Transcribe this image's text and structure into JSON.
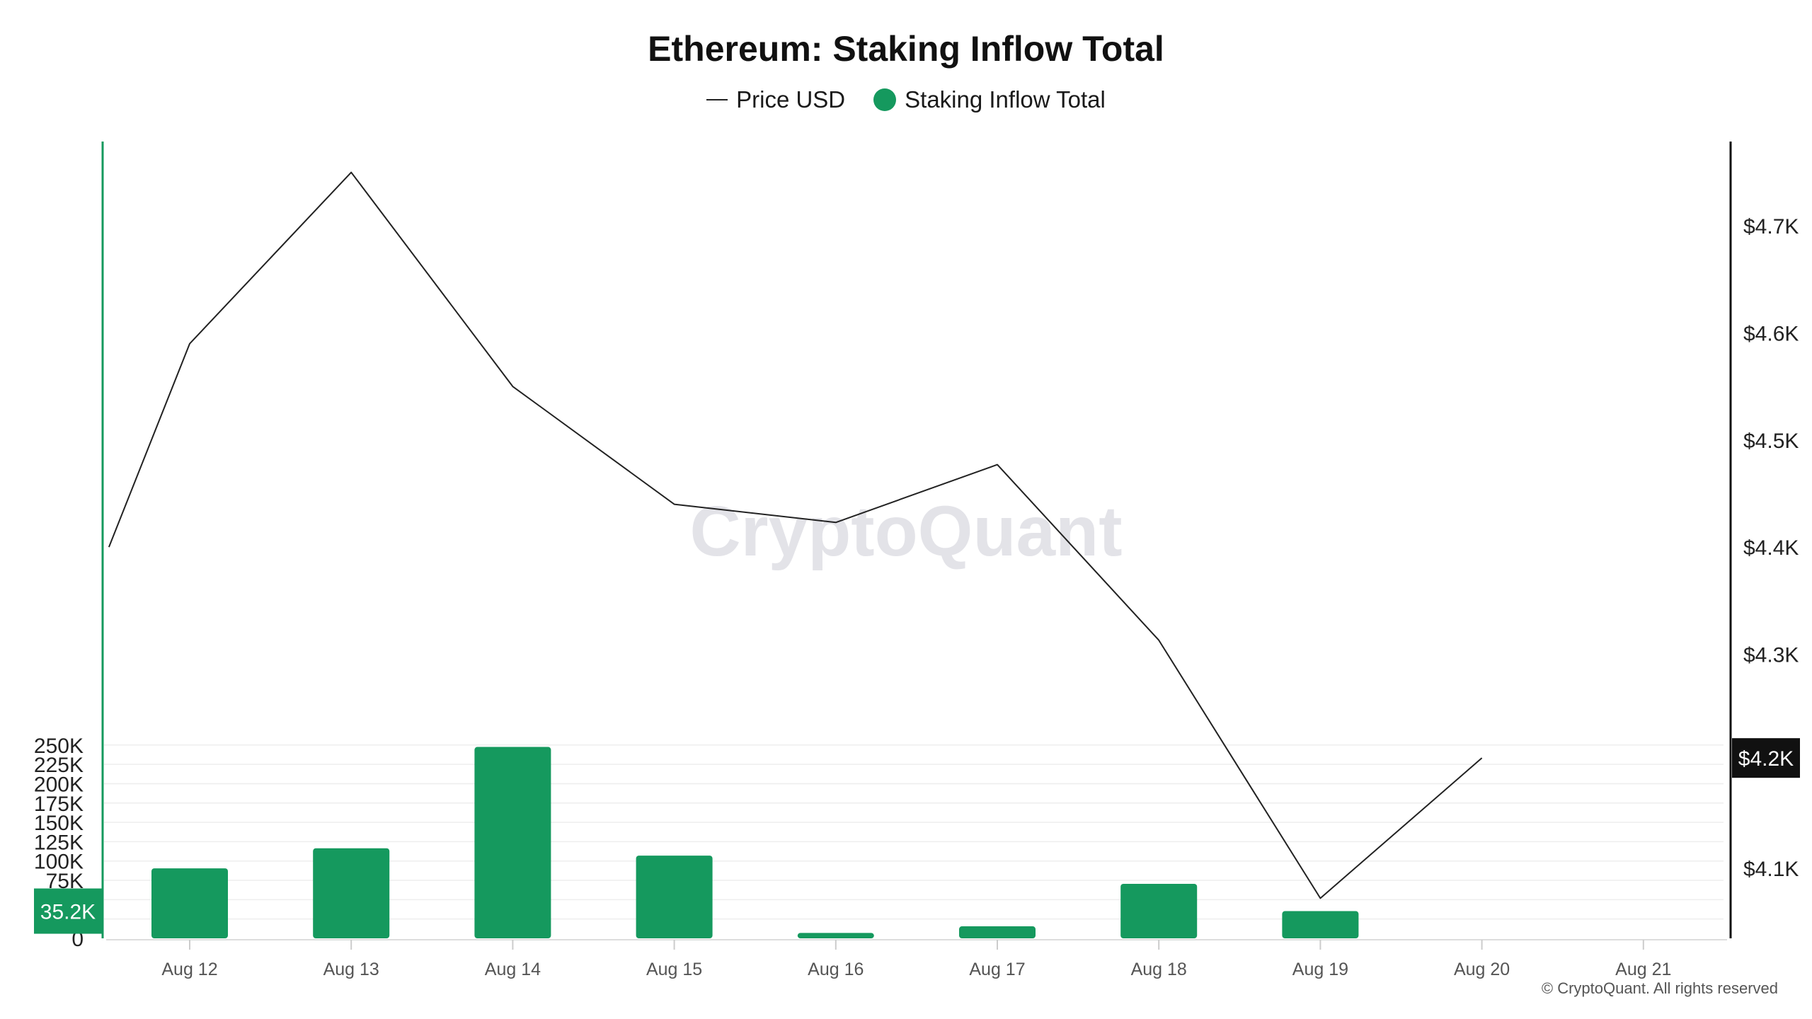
{
  "chart_data": {
    "type": "bar+line",
    "title": "Ethereum: Staking Inflow Total",
    "categories": [
      "Aug 12",
      "Aug 13",
      "Aug 14",
      "Aug 15",
      "Aug 16",
      "Aug 17",
      "Aug 18",
      "Aug 19",
      "Aug 20",
      "Aug 21"
    ],
    "series": [
      {
        "name": "Staking Inflow Total",
        "kind": "bar",
        "axis": "left",
        "color": "#15995e",
        "values": [
          90500,
          116500,
          247500,
          107000,
          7000,
          15500,
          70500,
          35200,
          null,
          null
        ]
      },
      {
        "name": "Price USD",
        "kind": "line",
        "axis": "right",
        "color": "#222222",
        "points": [
          {
            "x": "Aug 11 12:00",
            "y": 4400
          },
          {
            "x": "Aug 12",
            "y": 4590
          },
          {
            "x": "Aug 13",
            "y": 4750
          },
          {
            "x": "Aug 14",
            "y": 4550
          },
          {
            "x": "Aug 15",
            "y": 4440
          },
          {
            "x": "Aug 16",
            "y": 4423
          },
          {
            "x": "Aug 17",
            "y": 4477
          },
          {
            "x": "Aug 18",
            "y": 4313
          },
          {
            "x": "Aug 19",
            "y": 4072
          },
          {
            "x": "Aug 20",
            "y": 4203
          }
        ]
      }
    ],
    "left_axis": {
      "ticks": [
        0,
        25000,
        50000,
        75000,
        100000,
        125000,
        150000,
        175000,
        200000,
        225000,
        250000
      ],
      "tick_labels": [
        "0",
        "25K",
        "50K",
        "75K",
        "100K",
        "125K",
        "150K",
        "175K",
        "200K",
        "225K",
        "250K"
      ],
      "current_label": "35.2K",
      "current_value": 35200,
      "color": "#15995e"
    },
    "right_axis": {
      "ticks": [
        4100,
        4200,
        4300,
        4400,
        4500,
        4600,
        4700
      ],
      "tick_labels": [
        "$4.1K",
        "$4.2K",
        "$4.3K",
        "$4.4K",
        "$4.5K",
        "$4.6K",
        "$4.7K"
      ],
      "current_label": "$4.2K",
      "current_value": 4203,
      "color": "#111111"
    },
    "grid": true,
    "legend_position": "top-center",
    "watermark": "CryptoQuant"
  },
  "footer": {
    "copyright": "© CryptoQuant. All rights reserved"
  }
}
